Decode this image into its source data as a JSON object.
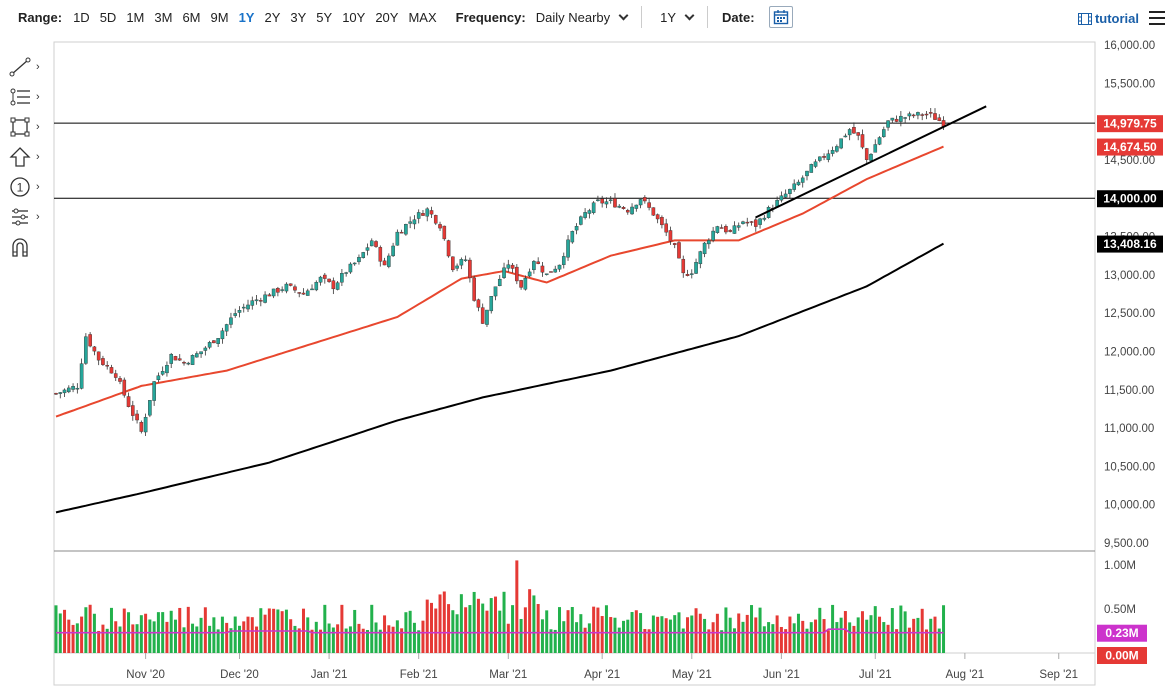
{
  "toolbar": {
    "range_label": "Range:",
    "ranges": [
      "1D",
      "5D",
      "1M",
      "3M",
      "6M",
      "9M",
      "1Y",
      "2Y",
      "3Y",
      "5Y",
      "10Y",
      "20Y",
      "MAX"
    ],
    "active_range": "1Y",
    "frequency_label": "Frequency:",
    "frequency_value": "Daily Nearby",
    "period_value": "1Y",
    "date_label": "Date:",
    "tutorial_label": "tutorial"
  },
  "tools": [
    "trendline-tool",
    "fib-tool",
    "rectangle-tool",
    "arrow-tool",
    "number-tool",
    "measure-tool",
    "magnet-tool"
  ],
  "colors": {
    "up": "#26a69a",
    "down": "#e53935",
    "ma50": "#e8472e",
    "ma200": "#000000",
    "volume_avg": "#cc33cc",
    "label_green": "#21a643"
  },
  "chart_data": {
    "type": "candlestick",
    "price_axis": {
      "ylim": [
        9500,
        16000
      ],
      "ticks": [
        "16,000.00",
        "15,500.00",
        "15,000.00",
        "14,500.00",
        "14,000.00",
        "13,500.00",
        "13,000.00",
        "12,500.00",
        "12,000.00",
        "11,500.00",
        "11,000.00",
        "10,500.00",
        "10,000.00",
        "9,500.00"
      ],
      "tick_values": [
        16000,
        15500,
        15000,
        14500,
        14000,
        13500,
        13000,
        12500,
        12000,
        11500,
        11000,
        10500,
        10000,
        9500
      ]
    },
    "x_axis": {
      "labels": [
        "Nov '20",
        "Dec '20",
        "Jan '21",
        "Feb '21",
        "Mar '21",
        "Apr '21",
        "May '21",
        "Jun '21",
        "Jul '21",
        "Aug '21",
        "Sep '21"
      ],
      "label_day_index": [
        21,
        43,
        64,
        85,
        106,
        128,
        149,
        170,
        192,
        213,
        235
      ]
    },
    "close_keypoints": [
      [
        0,
        11450
      ],
      [
        5,
        11550
      ],
      [
        7,
        12200
      ],
      [
        10,
        11900
      ],
      [
        14,
        11700
      ],
      [
        17,
        11300
      ],
      [
        20,
        10950
      ],
      [
        23,
        11600
      ],
      [
        27,
        11950
      ],
      [
        30,
        11850
      ],
      [
        34,
        12000
      ],
      [
        38,
        12200
      ],
      [
        42,
        12500
      ],
      [
        46,
        12650
      ],
      [
        50,
        12750
      ],
      [
        54,
        12850
      ],
      [
        58,
        12750
      ],
      [
        62,
        12950
      ],
      [
        65,
        12850
      ],
      [
        68,
        13050
      ],
      [
        71,
        13200
      ],
      [
        74,
        13450
      ],
      [
        77,
        13100
      ],
      [
        80,
        13550
      ],
      [
        84,
        13750
      ],
      [
        87,
        13850
      ],
      [
        90,
        13650
      ],
      [
        93,
        13100
      ],
      [
        96,
        13200
      ],
      [
        98,
        12700
      ],
      [
        100,
        12400
      ],
      [
        103,
        12850
      ],
      [
        106,
        13150
      ],
      [
        109,
        12850
      ],
      [
        112,
        13200
      ],
      [
        115,
        13000
      ],
      [
        118,
        13150
      ],
      [
        121,
        13550
      ],
      [
        124,
        13800
      ],
      [
        127,
        13950
      ],
      [
        130,
        13950
      ],
      [
        134,
        13850
      ],
      [
        137,
        14000
      ],
      [
        140,
        13800
      ],
      [
        143,
        13550
      ],
      [
        145,
        13350
      ],
      [
        147,
        13000
      ],
      [
        149,
        13050
      ],
      [
        152,
        13400
      ],
      [
        155,
        13650
      ],
      [
        158,
        13550
      ],
      [
        161,
        13700
      ],
      [
        164,
        13650
      ],
      [
        167,
        13850
      ],
      [
        170,
        14000
      ],
      [
        174,
        14200
      ],
      [
        177,
        14400
      ],
      [
        180,
        14550
      ],
      [
        183,
        14700
      ],
      [
        186,
        14900
      ],
      [
        188,
        14800
      ],
      [
        190,
        14500
      ],
      [
        193,
        14800
      ],
      [
        195,
        15000
      ],
      [
        198,
        15050
      ],
      [
        201,
        15080
      ],
      [
        204,
        15100
      ],
      [
        206,
        15050
      ],
      [
        208,
        14979.75
      ]
    ],
    "current_price": 14979.75,
    "price_labels": [
      {
        "text": "14,979.75",
        "value": 14979.75,
        "color": "#e53935"
      },
      {
        "text": "14,674.50",
        "value": 14674.5,
        "color": "#e53935"
      },
      {
        "text": "14,000.00",
        "value": 14000,
        "color": "#000000"
      },
      {
        "text": "13,408.16",
        "value": 13408.16,
        "color": "#000000"
      }
    ],
    "horizontal_lines": [
      14979.75,
      14000
    ],
    "ma50_keypoints": [
      [
        0,
        11150
      ],
      [
        20,
        11550
      ],
      [
        40,
        11750
      ],
      [
        60,
        12100
      ],
      [
        80,
        12450
      ],
      [
        95,
        12950
      ],
      [
        105,
        13050
      ],
      [
        115,
        12900
      ],
      [
        130,
        13250
      ],
      [
        145,
        13450
      ],
      [
        160,
        13450
      ],
      [
        175,
        13800
      ],
      [
        190,
        14250
      ],
      [
        208,
        14674.5
      ]
    ],
    "ma200_keypoints": [
      [
        0,
        9900
      ],
      [
        20,
        10150
      ],
      [
        50,
        10550
      ],
      [
        80,
        11100
      ],
      [
        100,
        11400
      ],
      [
        130,
        11750
      ],
      [
        160,
        12200
      ],
      [
        190,
        12850
      ],
      [
        208,
        13408.16
      ]
    ],
    "trendline": [
      [
        164,
        13750
      ],
      [
        218,
        15200
      ]
    ],
    "volume_axis": {
      "ticks": [
        "1.00M",
        "0.50M"
      ],
      "tick_values": [
        1000000,
        500000
      ],
      "current_avg_label": "0.23M",
      "current_avg_value": 230000,
      "zero_label": "0.00M",
      "zero_value": 0
    }
  }
}
